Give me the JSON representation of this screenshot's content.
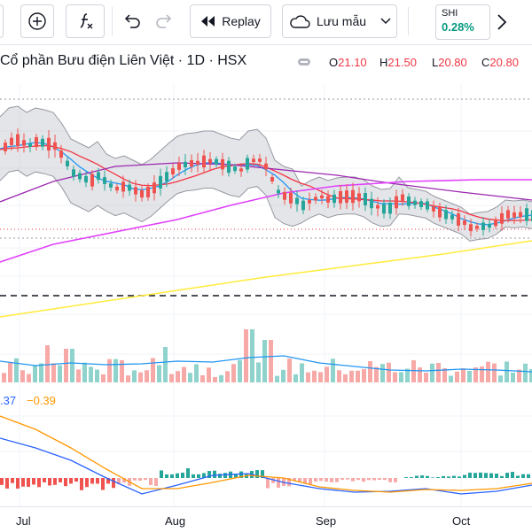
{
  "toolbar": {
    "replay_label": "Replay",
    "cloud_label": "Lưu mẫu",
    "symbol": {
      "ticker": "SHI",
      "change": "0.28%"
    }
  },
  "legend": {
    "title": "Cổ phần Bưu điện Liên Việt · 1D · HSX",
    "ohlc": [
      {
        "key": "O",
        "value": "21.10"
      },
      {
        "key": "H",
        "value": "21.50"
      },
      {
        "key": "L",
        "value": "20.80"
      },
      {
        "key": "C",
        "value": "20.80"
      }
    ]
  },
  "macd": {
    "value1": ".37",
    "value2": "−0.39"
  },
  "xaxis": {
    "labels": [
      "Jul",
      "Aug",
      "Sep",
      "Oct"
    ]
  },
  "colors": {
    "up": "#26a69a",
    "down": "#ef5350",
    "up_soft": "#8fd3cc",
    "down_soft": "#f7a9a7",
    "bb": "#787b86",
    "ma_blue": "#2196f3",
    "ma_red": "#f23645",
    "ma_purple": "#9c27b0",
    "ma_magenta": "#e040fb",
    "ma_yellow": "#ffeb3b",
    "macd_line": "#2962ff",
    "signal_line": "#ff9800"
  }
}
